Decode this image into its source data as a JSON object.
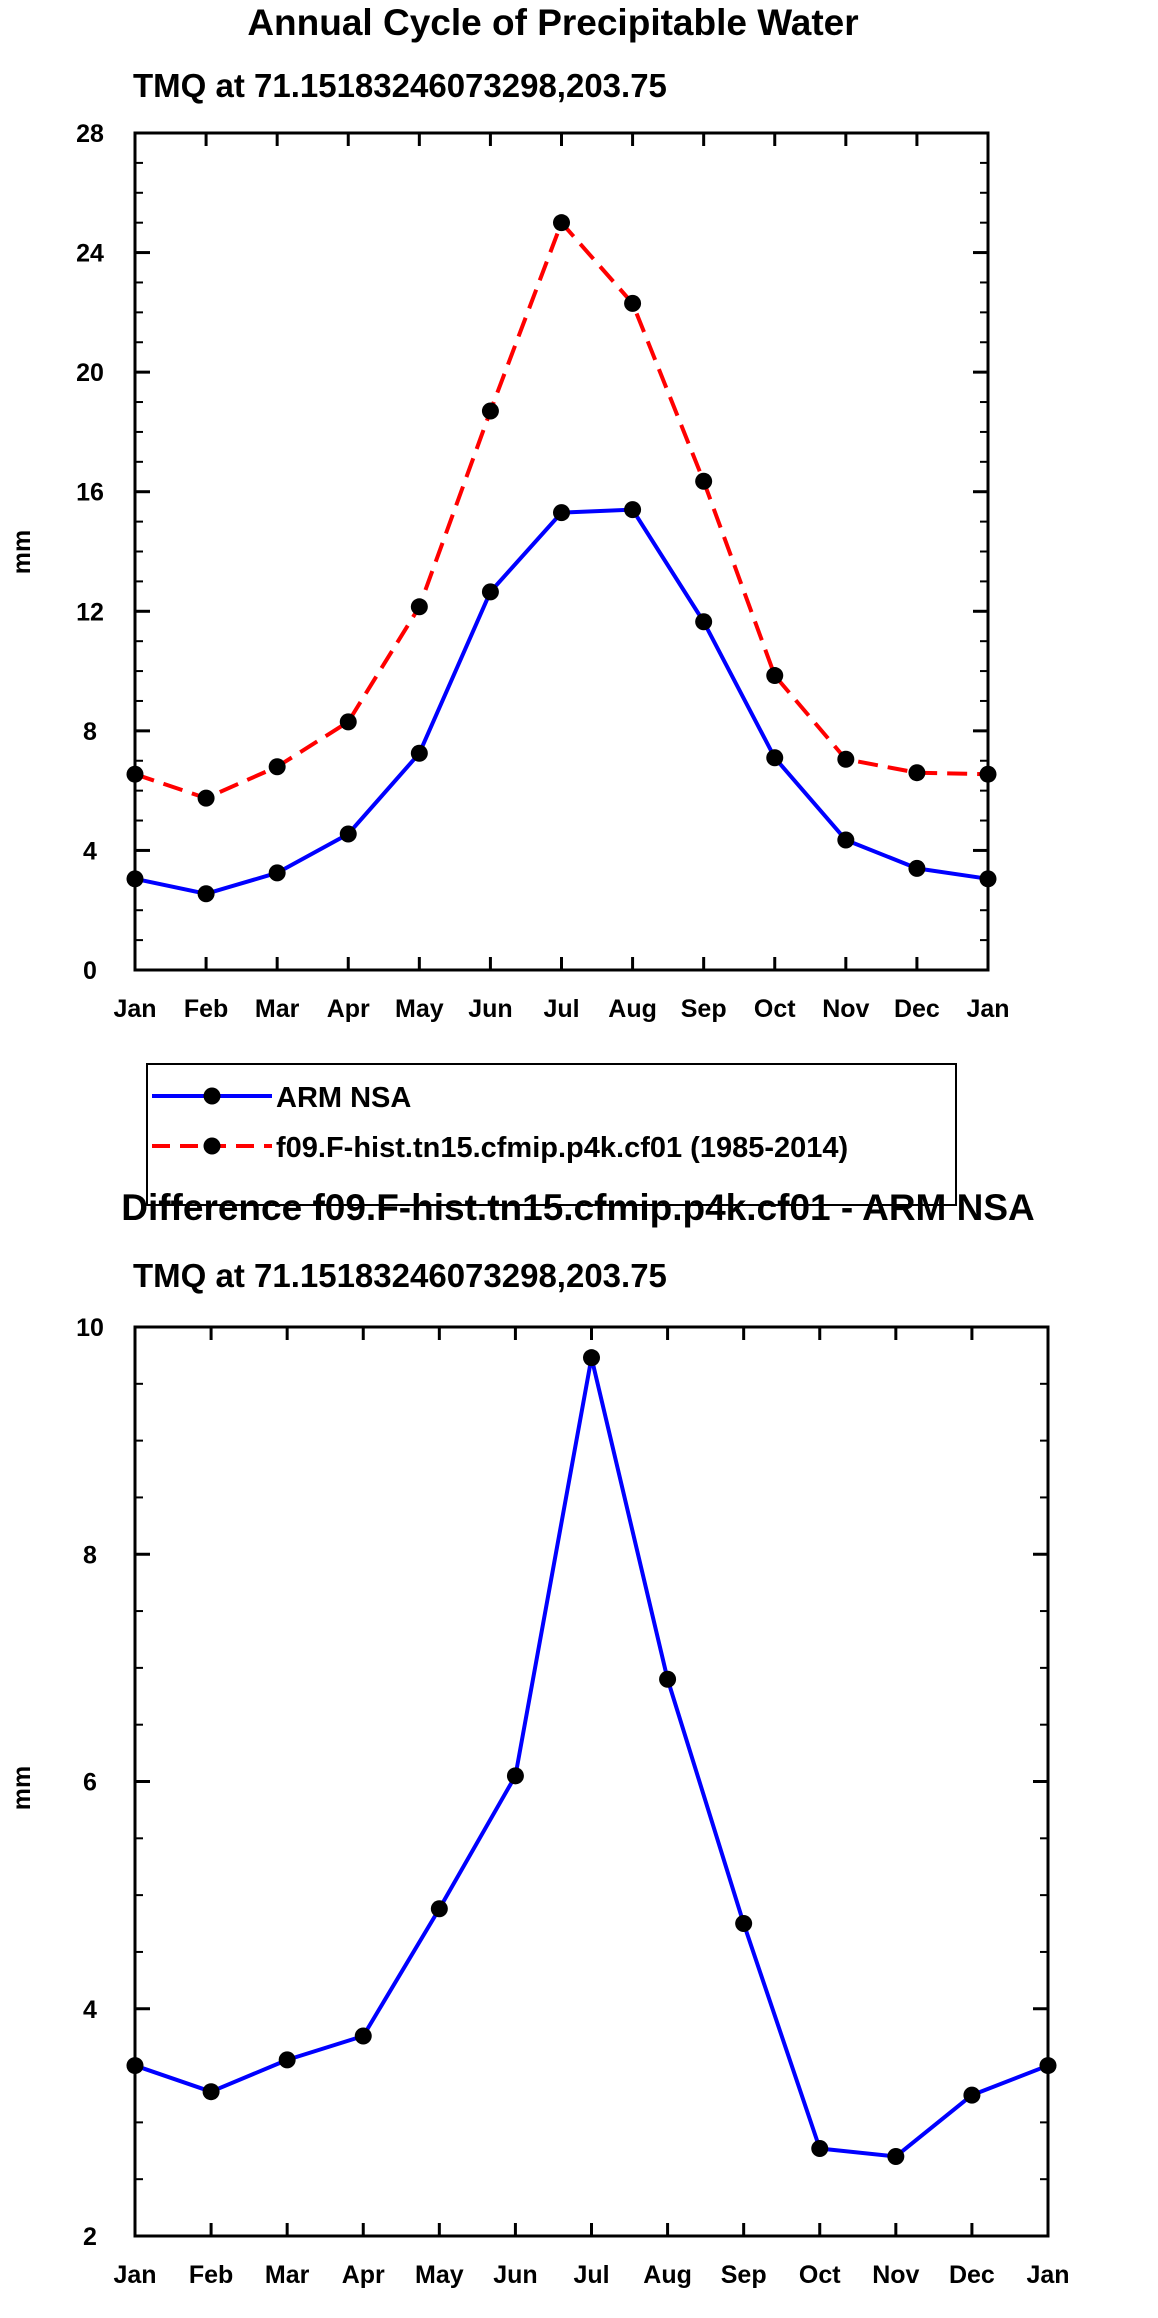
{
  "chart_data": [
    {
      "type": "line",
      "title": "Annual Cycle of Precipitable Water",
      "subtitle": "TMQ at 71.15183246073298,203.75",
      "xlabel": "",
      "ylabel": "mm",
      "categories": [
        "Jan",
        "Feb",
        "Mar",
        "Apr",
        "May",
        "Jun",
        "Jul",
        "Aug",
        "Sep",
        "Oct",
        "Nov",
        "Dec",
        "Jan"
      ],
      "ylim": [
        0,
        28
      ],
      "yticks": [
        0,
        4,
        8,
        12,
        16,
        20,
        24,
        28
      ],
      "ytick_labels": [
        "0",
        "4",
        "8",
        "12",
        "16",
        "20",
        "24",
        "28"
      ],
      "series": [
        {
          "name": "ARM NSA",
          "color": "#0000ff",
          "dash": "solid",
          "values": [
            3.05,
            2.55,
            3.25,
            4.55,
            7.25,
            12.65,
            15.3,
            15.4,
            11.65,
            7.1,
            4.35,
            3.4,
            3.05
          ]
        },
        {
          "name": "f09.F-hist.tn15.cfmip.p4k.cf01 (1985-2014)",
          "color": "#ff0000",
          "dash": "dashed",
          "values": [
            6.55,
            5.75,
            6.8,
            8.3,
            12.15,
            18.7,
            25.0,
            22.3,
            16.35,
            9.85,
            7.05,
            6.6,
            6.55
          ]
        }
      ]
    },
    {
      "type": "line",
      "title": "Difference f09.F-hist.tn15.cfmip.p4k.cf01 - ARM NSA",
      "subtitle": "TMQ at 71.15183246073298,203.75",
      "xlabel": "",
      "ylabel": "mm",
      "categories": [
        "Jan",
        "Feb",
        "Mar",
        "Apr",
        "May",
        "Jun",
        "Jul",
        "Aug",
        "Sep",
        "Oct",
        "Nov",
        "Dec",
        "Jan"
      ],
      "ylim": [
        2,
        10
      ],
      "yticks": [
        2,
        4,
        6,
        8,
        10
      ],
      "ytick_labels": [
        "2",
        "4",
        "6",
        "8",
        "10"
      ],
      "series": [
        {
          "name": "Difference",
          "color": "#0000ff",
          "dash": "solid",
          "values": [
            3.5,
            3.27,
            3.55,
            3.76,
            4.88,
            6.05,
            9.73,
            6.9,
            4.75,
            2.77,
            2.7,
            3.24,
            3.5
          ]
        }
      ]
    }
  ]
}
